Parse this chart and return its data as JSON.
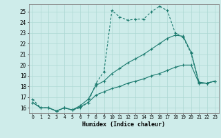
{
  "xlabel": "Humidex (Indice chaleur)",
  "background_color": "#ceecea",
  "grid_color": "#aed8d4",
  "line_color": "#1a7a6e",
  "xlim": [
    -0.5,
    23.5
  ],
  "ylim": [
    15.5,
    25.7
  ],
  "yticks": [
    16,
    17,
    18,
    19,
    20,
    21,
    22,
    23,
    24,
    25
  ],
  "xticks": [
    0,
    1,
    2,
    3,
    4,
    5,
    6,
    7,
    8,
    9,
    10,
    11,
    12,
    13,
    14,
    15,
    16,
    17,
    18,
    19,
    20,
    21,
    22,
    23
  ],
  "line1_x": [
    0,
    1,
    2,
    3,
    4,
    5,
    6,
    7,
    8,
    9,
    10,
    11,
    12,
    13,
    14,
    15,
    16,
    17,
    18,
    19,
    20,
    21,
    22,
    23
  ],
  "line1_y": [
    16.8,
    16.0,
    16.0,
    15.7,
    16.0,
    15.8,
    16.0,
    16.5,
    18.3,
    19.4,
    25.1,
    24.5,
    24.2,
    24.3,
    24.3,
    25.0,
    25.5,
    25.1,
    23.0,
    22.6,
    21.1,
    18.3,
    18.3,
    18.5
  ],
  "line2_x": [
    0,
    1,
    2,
    3,
    4,
    5,
    6,
    7,
    8,
    9,
    10,
    11,
    12,
    13,
    14,
    15,
    16,
    17,
    18,
    19,
    20,
    21,
    22,
    23
  ],
  "line2_y": [
    16.5,
    16.0,
    16.0,
    15.7,
    16.0,
    15.8,
    16.2,
    16.8,
    18.1,
    18.5,
    19.2,
    19.7,
    20.2,
    20.6,
    21.0,
    21.5,
    22.0,
    22.5,
    22.8,
    22.7,
    21.2,
    18.4,
    18.3,
    18.5
  ],
  "line3_x": [
    0,
    1,
    2,
    3,
    4,
    5,
    6,
    7,
    8,
    9,
    10,
    11,
    12,
    13,
    14,
    15,
    16,
    17,
    18,
    19,
    20,
    21,
    22,
    23
  ],
  "line3_y": [
    16.5,
    16.0,
    16.0,
    15.7,
    16.0,
    15.8,
    16.1,
    16.5,
    17.2,
    17.5,
    17.8,
    18.0,
    18.3,
    18.5,
    18.7,
    19.0,
    19.2,
    19.5,
    19.8,
    20.0,
    20.0,
    18.3,
    18.3,
    18.5
  ]
}
